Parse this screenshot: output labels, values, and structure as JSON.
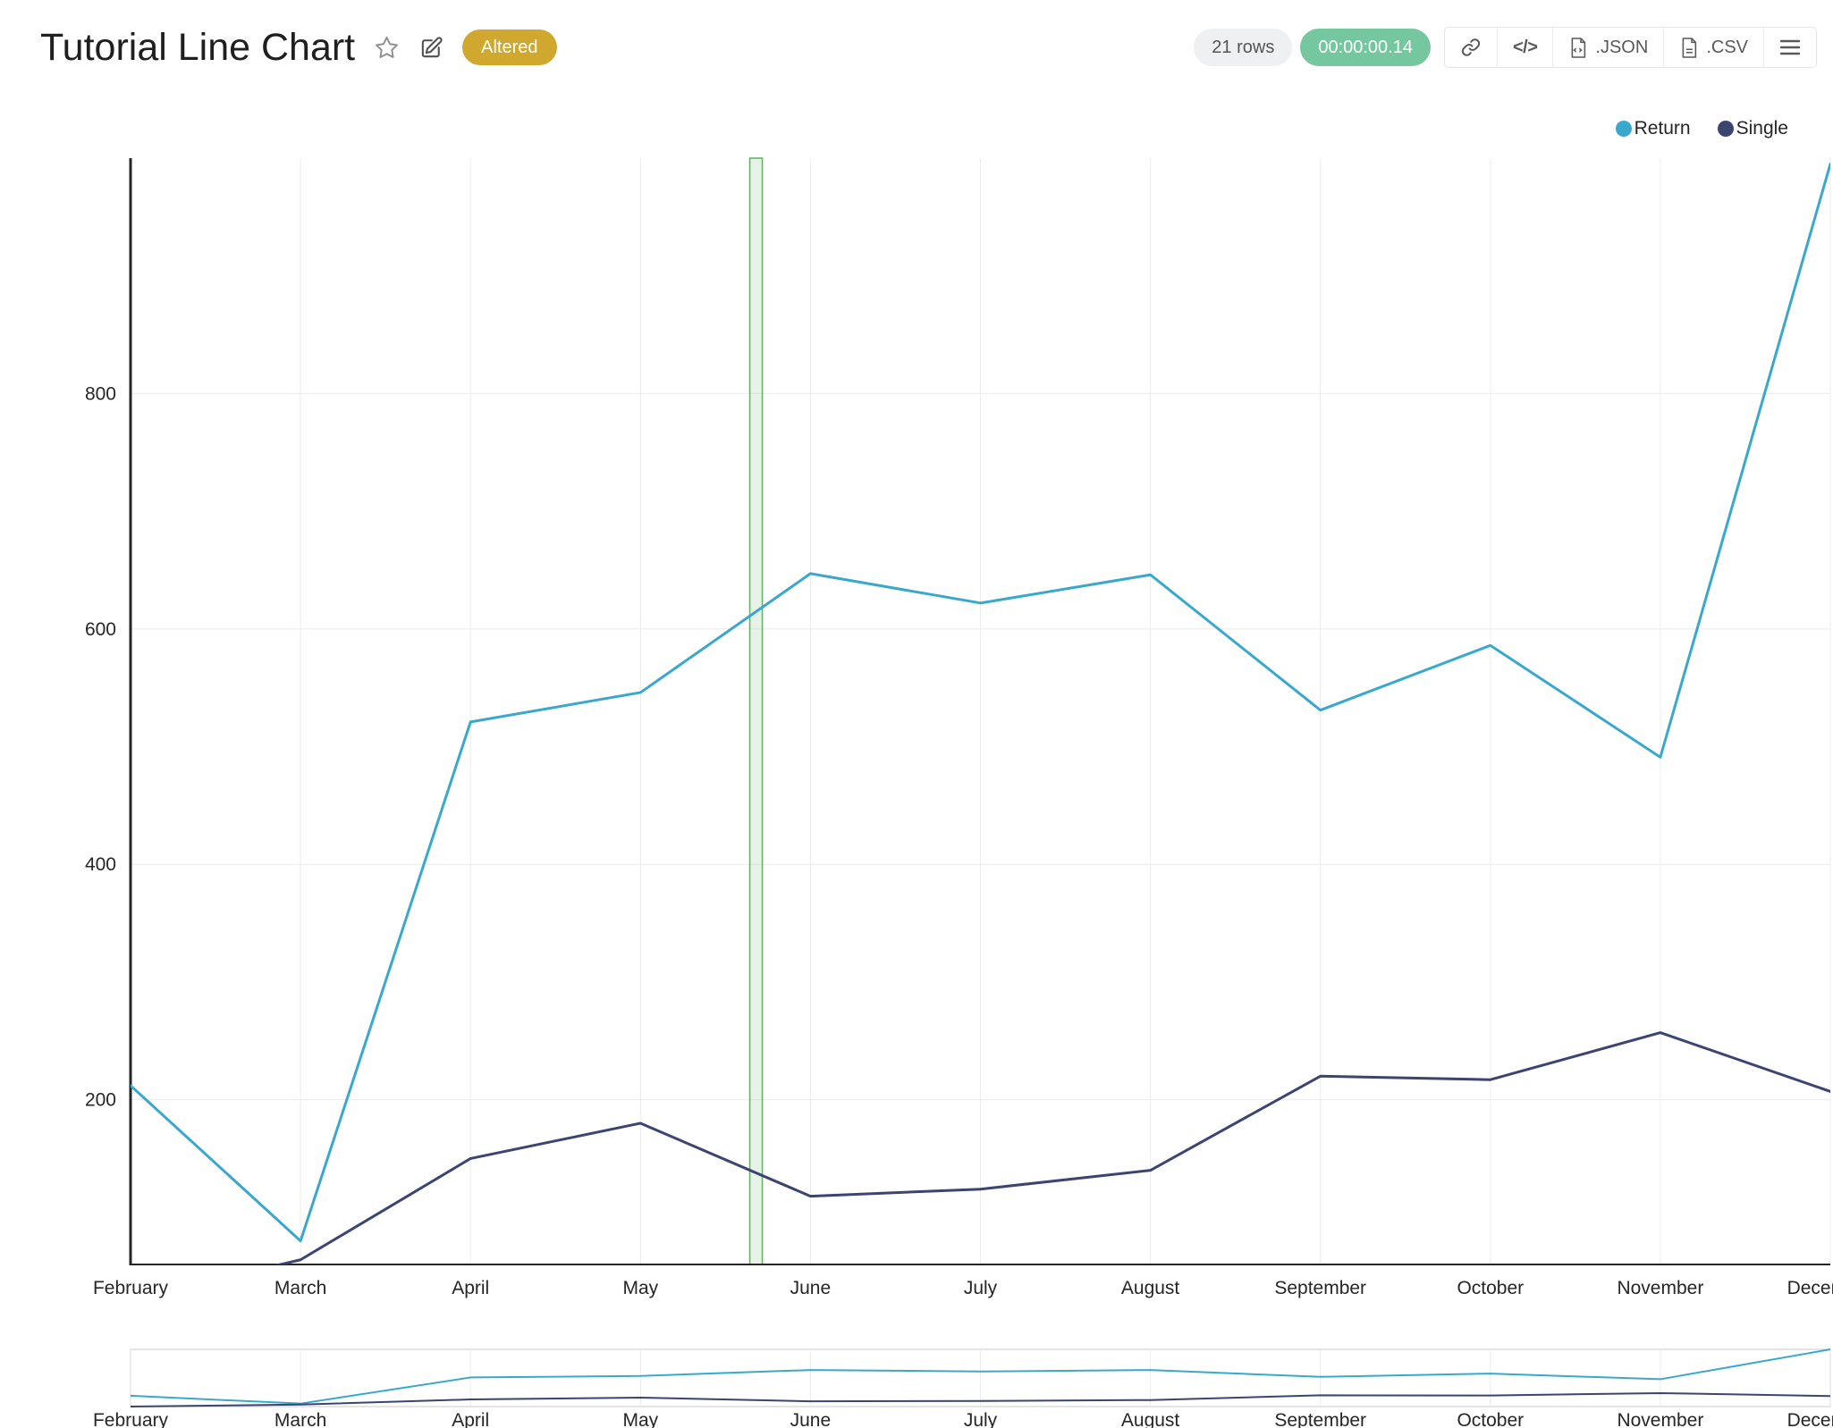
{
  "page": {
    "title": "Tutorial Line Chart",
    "status_badge": "Altered",
    "row_count": "21 rows",
    "execution_time": "00:00:00.14",
    "toolbar": {
      "embed_label": "</>",
      "json_label": ".JSON",
      "csv_label": ".CSV"
    },
    "icons": {
      "favorite": "star-outline-icon",
      "edit": "edit-pencil-icon",
      "share": "link-icon",
      "embed": "code-icon",
      "json_file": "file-json-icon",
      "csv_file": "file-csv-icon",
      "menu": "hamburger-menu-icon"
    }
  },
  "colors": {
    "accent_return": "#3aa8cc",
    "accent_single": "#3c4470",
    "altered_badge_bg": "#d0a82e",
    "timer_badge_bg": "#74c79e",
    "rows_badge_bg": "#eef0f1",
    "grid": "#ececec",
    "axis": "#262626",
    "band_fill": "rgba(103,177,104,0.15)",
    "band_stroke": "#68b36b",
    "rangeslider_border": "#d9d9d9"
  },
  "chart_data": {
    "type": "line",
    "title": "Tutorial Line Chart",
    "x": [
      "February",
      "March",
      "April",
      "May",
      "June",
      "July",
      "August",
      "September",
      "October",
      "November",
      "December"
    ],
    "series": [
      {
        "name": "Return",
        "color": "#3aa8cc",
        "values": [
          212,
          80,
          521,
          546,
          647,
          622,
          646,
          531,
          586,
          491,
          995
        ]
      },
      {
        "name": "Single",
        "color": "#3c4470",
        "values": [
          30,
          64,
          150,
          180,
          118,
          124,
          140,
          220,
          217,
          257,
          207
        ]
      }
    ],
    "yticks": [
      200,
      400,
      600,
      800
    ],
    "ylim": [
      60,
      1000
    ],
    "xlabel": "",
    "ylabel": "",
    "grid": true,
    "legend": [
      "Return",
      "Single"
    ],
    "legend_position": "top-right",
    "highlight_band": {
      "x_index": 3.68
    },
    "rangeslider": true
  }
}
